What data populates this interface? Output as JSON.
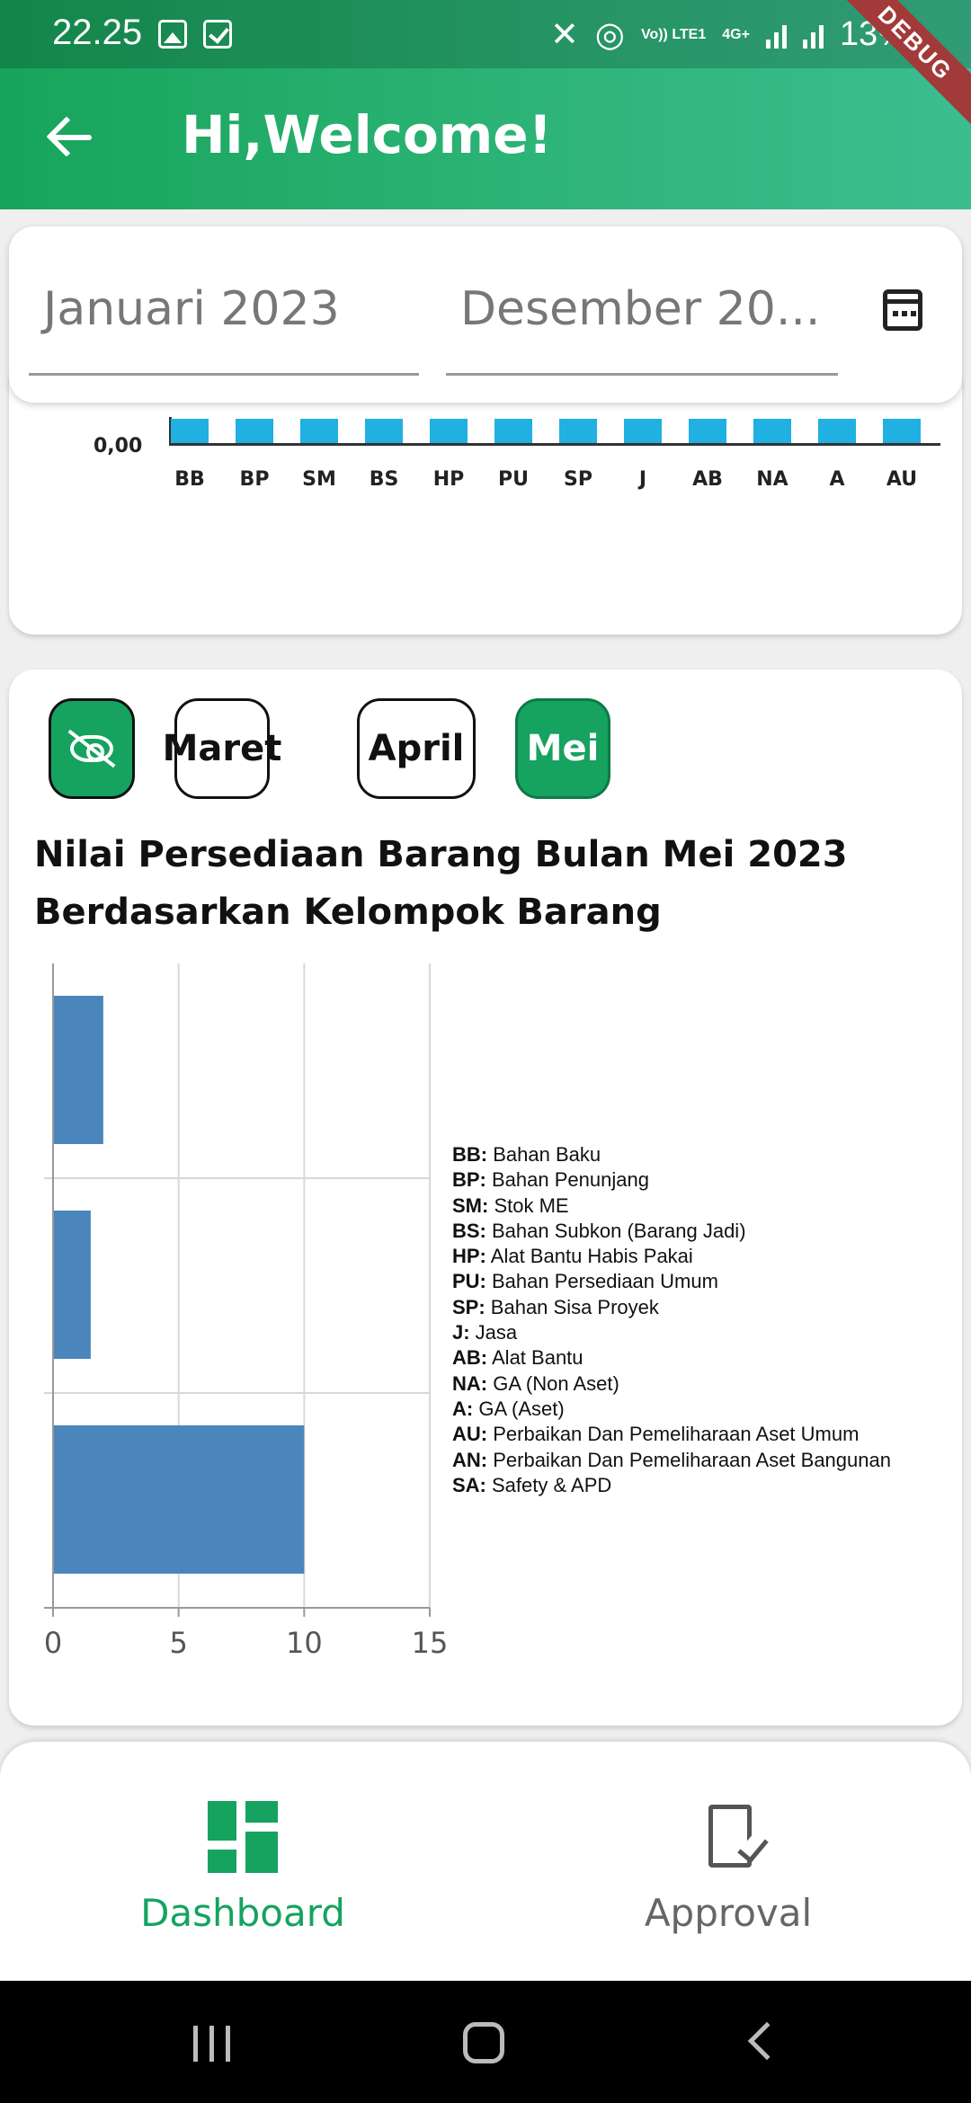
{
  "status_bar": {
    "time": "22.25",
    "network": "Vo)) LTE1",
    "signal_label": "4G+",
    "battery": "13%",
    "debug_banner": "DEBUG"
  },
  "app_bar": {
    "title": "Hi,Welcome!"
  },
  "date_range": {
    "start": "Januari 2023",
    "end": "Desember 20..."
  },
  "top_chart": {
    "y_tick": "0,00",
    "categories": [
      "BB",
      "BP",
      "SM",
      "BS",
      "HP",
      "PU",
      "SP",
      "J",
      "AB",
      "NA",
      "A",
      "AU"
    ],
    "bar_color": "#20b0e2"
  },
  "month_filter": {
    "chips": [
      "Maret",
      "April",
      "Mei"
    ],
    "selected": "Mei"
  },
  "chart_title": {
    "line1": "Nilai Persediaan Barang Bulan Mei 2023",
    "line2": "Berdasarkan Kelompok Barang"
  },
  "chart_data": [
    {
      "type": "bar",
      "orientation": "vertical",
      "categories": [
        "BB",
        "BP",
        "SM",
        "BS",
        "HP",
        "PU",
        "SP",
        "J",
        "AB",
        "NA",
        "A",
        "AU"
      ],
      "values": [
        0,
        0,
        0,
        0,
        0,
        0,
        0,
        0,
        0,
        0,
        0,
        0
      ],
      "yticks": [
        "0,00"
      ]
    },
    {
      "type": "bar",
      "orientation": "horizontal",
      "title": "Nilai Persediaan Barang Bulan Mei 2023 Berdasarkan Kelompok Barang",
      "values": [
        2,
        1.5,
        10
      ],
      "xlim": [
        0,
        15
      ],
      "xticks": [
        0,
        5,
        10,
        15
      ],
      "grid": true,
      "bar_color": "#4a86bc",
      "legend": [
        {
          "code": "BB:",
          "name": "Bahan Baku"
        },
        {
          "code": "BP:",
          "name": "Bahan Penunjang"
        },
        {
          "code": "SM:",
          "name": "Stok ME"
        },
        {
          "code": "BS:",
          "name": "Bahan Subkon (Barang Jadi)"
        },
        {
          "code": "HP:",
          "name": "Alat Bantu Habis Pakai"
        },
        {
          "code": "PU:",
          "name": "Bahan Persediaan Umum"
        },
        {
          "code": "SP:",
          "name": "Bahan Sisa Proyek"
        },
        {
          "code": "J:",
          "name": "Jasa"
        },
        {
          "code": "AB:",
          "name": "Alat Bantu"
        },
        {
          "code": "NA:",
          "name": "GA (Non Aset)"
        },
        {
          "code": "A:",
          "name": "GA (Aset)"
        },
        {
          "code": "AU:",
          "name": "Perbaikan Dan Pemeliharaan Aset Umum"
        },
        {
          "code": "AN:",
          "name": "Perbaikan Dan Pemeliharaan Aset Bangunan"
        },
        {
          "code": "SA:",
          "name": "Safety & APD"
        }
      ]
    }
  ],
  "bottom_nav": {
    "dashboard": "Dashboard",
    "approval": "Approval",
    "active_color": "#15a35f",
    "inactive_color": "#666666"
  }
}
